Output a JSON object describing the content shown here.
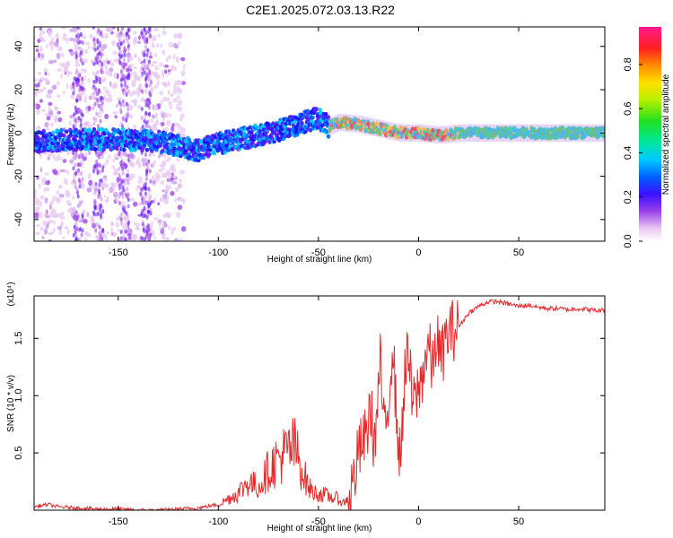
{
  "title": "C2E1.2025.072.03.13.R22",
  "colors": {
    "series": "#e8282a",
    "axis": "#000000",
    "background": "#ffffff"
  },
  "chart_data": [
    {
      "type": "heatmap",
      "xlabel": "Height of straight line (km)",
      "ylabel": "Frequency (Hz)",
      "xlim": [
        -192,
        93
      ],
      "ylim": [
        -50,
        49
      ],
      "x_ticks": [
        -150,
        -100,
        -50,
        0,
        50
      ],
      "x_tick_labels": [
        "-150",
        "-100",
        "-50",
        "0",
        "50"
      ],
      "y_ticks": [
        -40,
        -20,
        0,
        20,
        40
      ],
      "y_tick_labels": [
        "-40",
        "-20",
        "0",
        "20",
        "40"
      ],
      "colorbar": {
        "label": "Normalized spectral amplitude",
        "range": [
          0,
          0.97
        ],
        "ticks": [
          0.0,
          0.2,
          0.4,
          0.6,
          0.8
        ],
        "tick_labels": [
          "0.0",
          "0.2",
          "0.4",
          "0.6",
          "0.8"
        ]
      },
      "ridge": {
        "x": [
          -192,
          -170,
          -150,
          -130,
          -120,
          -110,
          -100,
          -90,
          -80,
          -70,
          -60,
          -50,
          -45,
          -40,
          -30,
          -20,
          -10,
          0,
          10,
          20,
          40,
          60,
          80,
          93
        ],
        "y": [
          -4,
          -3,
          -3,
          -4,
          -6,
          -8,
          -5,
          -3,
          -1,
          1,
          4,
          7,
          3,
          5,
          4,
          2,
          0,
          0,
          -1,
          0,
          0,
          0,
          0,
          0
        ]
      }
    },
    {
      "type": "line",
      "xlabel": "Height of straight line (km)",
      "ylabel": "SNR (10 * v/v)",
      "y_multiplier": "(x10⁴)",
      "xlim": [
        -192,
        93
      ],
      "ylim": [
        0,
        1.87
      ],
      "x_ticks": [
        -150,
        -100,
        -50,
        0,
        50
      ],
      "x_tick_labels": [
        "-150",
        "-100",
        "-50",
        "0",
        "50"
      ],
      "y_ticks": [
        0.5,
        1.0,
        1.5
      ],
      "y_tick_labels": [
        "0.5",
        "1.0",
        "1.5"
      ],
      "series": [
        {
          "name": "SNR",
          "x": [
            -192,
            -185,
            -180,
            -170,
            -160,
            -150,
            -140,
            -130,
            -120,
            -110,
            -100,
            -95,
            -90,
            -85,
            -80,
            -75,
            -70,
            -66,
            -62,
            -58,
            -55,
            -52,
            -50,
            -45,
            -40,
            -38,
            -35,
            -32,
            -30,
            -26,
            -24,
            -22,
            -19,
            -17,
            -15,
            -13,
            -11,
            -9,
            -7,
            -5,
            -3,
            -1,
            1,
            3,
            5,
            7,
            9,
            11,
            13,
            15,
            20,
            25,
            30,
            35,
            40,
            45,
            50,
            55,
            60,
            65,
            70,
            75,
            80,
            85,
            90,
            93
          ],
          "y": [
            0.03,
            0.05,
            0.03,
            0.02,
            0.01,
            0.01,
            0.0,
            0.0,
            0.01,
            0.02,
            0.05,
            0.1,
            0.15,
            0.25,
            0.2,
            0.35,
            0.45,
            0.5,
            0.55,
            0.35,
            0.2,
            0.15,
            0.15,
            0.12,
            0.1,
            0.06,
            0.1,
            0.3,
            0.5,
            0.65,
            0.9,
            0.55,
            1.3,
            0.6,
            0.95,
            1.5,
            0.8,
            0.4,
            1.2,
            1.35,
            0.9,
            1.0,
            1.1,
            1.3,
            1.45,
            1.2,
            1.55,
            1.3,
            1.45,
            1.55,
            1.6,
            1.72,
            1.78,
            1.82,
            1.82,
            1.8,
            1.78,
            1.79,
            1.77,
            1.76,
            1.76,
            1.75,
            1.76,
            1.75,
            1.74,
            1.75
          ]
        }
      ]
    }
  ]
}
